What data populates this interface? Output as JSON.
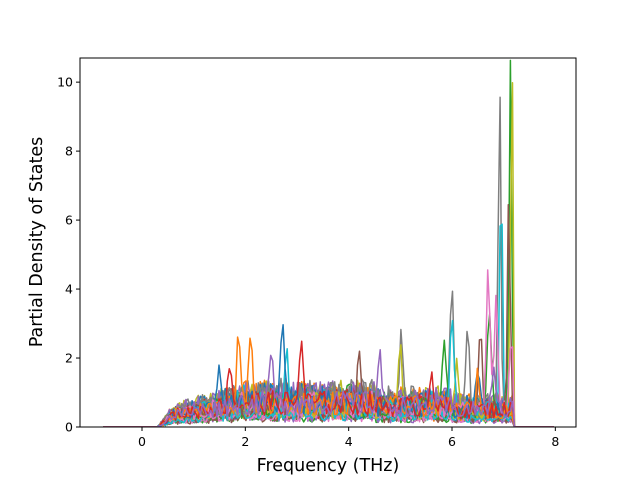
{
  "chart_data": {
    "type": "line",
    "title": "",
    "xlabel": "Frequency (THz)",
    "ylabel": "Partial Density of States",
    "xlim": [
      -1.2,
      8.4
    ],
    "ylim": [
      0,
      10.7
    ],
    "x_ticks": [
      0,
      2,
      4,
      6,
      8
    ],
    "y_ticks": [
      0,
      2,
      4,
      6,
      8,
      10
    ],
    "grid": false,
    "legend": "none",
    "x_range": [
      -0.75,
      8.0
    ],
    "colors": [
      "#1f77b4",
      "#ff7f0e",
      "#2ca02c",
      "#d62728",
      "#9467bd",
      "#8c564b",
      "#e377c2",
      "#7f7f7f",
      "#bcbd22",
      "#17becf"
    ],
    "series": [
      {
        "color": "#7f7f7f",
        "peaks": [
          [
            6.0,
            3.7
          ],
          [
            6.92,
            9.95
          ],
          [
            5.02,
            2.3
          ],
          [
            6.3,
            2.35
          ]
        ]
      },
      {
        "color": "#2ca02c",
        "peaks": [
          [
            7.13,
            10.2
          ],
          [
            5.85,
            2.1
          ],
          [
            6.72,
            3.0
          ]
        ]
      },
      {
        "color": "#bcbd22",
        "peaks": [
          [
            7.16,
            10.1
          ],
          [
            5.0,
            1.9
          ],
          [
            6.1,
            1.4
          ]
        ]
      },
      {
        "color": "#17becf",
        "peaks": [
          [
            6.95,
            7.5
          ],
          [
            6.0,
            2.7
          ],
          [
            2.8,
            1.3
          ]
        ]
      },
      {
        "color": "#8c564b",
        "peaks": [
          [
            7.1,
            6.5
          ],
          [
            6.55,
            2.4
          ],
          [
            4.2,
            1.2
          ]
        ]
      },
      {
        "color": "#e377c2",
        "peaks": [
          [
            6.7,
            4.05
          ],
          [
            7.15,
            2.1
          ],
          [
            6.85,
            3.35
          ]
        ]
      },
      {
        "color": "#1f77b4",
        "peaks": [
          [
            2.72,
            2.45
          ],
          [
            6.5,
            1.2
          ],
          [
            1.5,
            1.3
          ]
        ]
      },
      {
        "color": "#ff7f0e",
        "peaks": [
          [
            1.87,
            1.9
          ],
          [
            2.1,
            1.7
          ],
          [
            6.5,
            1.0
          ]
        ]
      },
      {
        "color": "#d62728",
        "peaks": [
          [
            3.08,
            1.95
          ],
          [
            1.7,
            1.35
          ],
          [
            5.6,
            1.2
          ]
        ]
      },
      {
        "color": "#9467bd",
        "peaks": [
          [
            4.6,
            1.7
          ],
          [
            6.8,
            1.3
          ],
          [
            2.5,
            1.5
          ]
        ]
      }
    ]
  }
}
